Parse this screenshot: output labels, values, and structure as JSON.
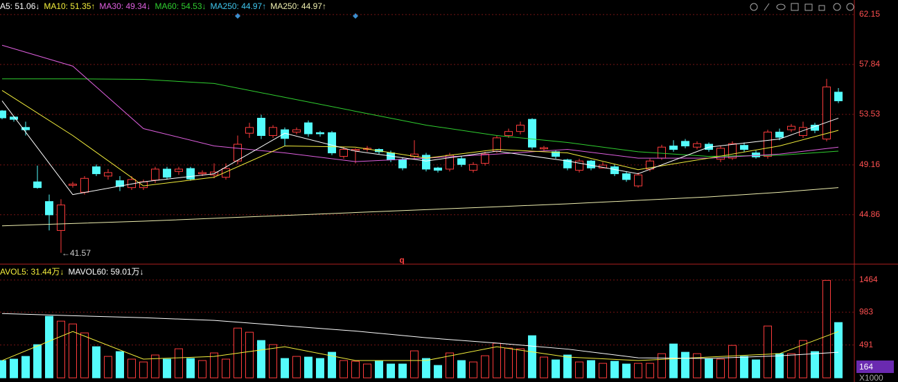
{
  "chart_data": [
    {
      "type": "candlestick",
      "legend": [
        {
          "text": "A5: 51.06↓",
          "color": "#ffffff"
        },
        {
          "text": "MA10: 51.35↑",
          "color": "#f5f03c"
        },
        {
          "text": "MA30: 49.34↓",
          "color": "#e060e0"
        },
        {
          "text": "MA60: 54.53↓",
          "color": "#30d030"
        },
        {
          "text": "MA250: 44.97↑",
          "color": "#40c8f0"
        },
        {
          "text": "MA250: 44.97↑",
          "color": "#f0f0b0"
        }
      ],
      "open": [
        53.83,
        53.3,
        52.4,
        47.7,
        46.0,
        43.5,
        47.4,
        46.8,
        49.0,
        48.2,
        47.8,
        47.2,
        47.2,
        47.85,
        48.8,
        48.6,
        48.85,
        48.4,
        48.3,
        48.1,
        49.5,
        51.9,
        53.2,
        51.7,
        52.2,
        52.0,
        52.8,
        51.95,
        51.95,
        49.9,
        50.4,
        50.5,
        50.5,
        50.2,
        49.6,
        49.9,
        50.0,
        48.9,
        48.8,
        49.7,
        48.7,
        49.3,
        50.35,
        51.7,
        52.05,
        53.1,
        50.55,
        50.3,
        49.6,
        48.7,
        49.5,
        48.9,
        49.0,
        48.4,
        47.35,
        48.8,
        49.75,
        50.8,
        51.2,
        50.7,
        50.95,
        49.65,
        49.75,
        50.85,
        50.2,
        49.9,
        52.0,
        52.2,
        51.7,
        52.6,
        51.4,
        55.45
      ],
      "high": [
        53.9,
        53.4,
        52.9,
        49.1,
        46.6,
        46.2,
        47.7,
        48.2,
        49.2,
        48.8,
        48.2,
        48.2,
        47.9,
        49.0,
        49.0,
        49.0,
        49.0,
        48.7,
        49.3,
        49.3,
        51.7,
        52.8,
        53.5,
        52.6,
        52.4,
        52.4,
        53.0,
        52.1,
        52.1,
        50.7,
        50.6,
        50.8,
        50.6,
        50.4,
        49.8,
        51.3,
        50.2,
        49.0,
        50.2,
        49.9,
        49.4,
        50.3,
        51.7,
        52.3,
        52.9,
        53.2,
        50.8,
        50.4,
        49.7,
        49.7,
        49.6,
        49.4,
        49.2,
        48.6,
        48.5,
        49.7,
        50.9,
        51.3,
        51.4,
        51.2,
        51.1,
        50.8,
        51.2,
        51.1,
        50.4,
        52.2,
        52.3,
        52.7,
        52.9,
        52.8,
        56.6,
        55.8
      ],
      "low": [
        53.1,
        52.9,
        51.7,
        47.1,
        43.5,
        41.57,
        47.2,
        46.6,
        48.2,
        47.9,
        46.9,
        47.0,
        47.0,
        47.6,
        47.9,
        48.3,
        47.8,
        48.2,
        48.0,
        47.9,
        49.2,
        51.5,
        51.4,
        51.5,
        50.8,
        51.8,
        51.6,
        51.6,
        50.0,
        49.7,
        49.3,
        50.3,
        50.1,
        49.4,
        48.7,
        49.7,
        48.6,
        48.5,
        48.6,
        49.0,
        48.5,
        49.1,
        50.2,
        51.5,
        51.8,
        50.5,
        50.4,
        49.7,
        48.7,
        48.5,
        48.7,
        48.9,
        48.2,
        47.7,
        47.2,
        48.6,
        49.6,
        50.3,
        50.6,
        50.5,
        50.3,
        49.4,
        49.6,
        50.3,
        49.7,
        49.7,
        51.3,
        52.0,
        51.5,
        51.9,
        51.2,
        54.5
      ],
      "close": [
        53.23,
        53.1,
        52.2,
        47.2,
        44.85,
        45.7,
        47.5,
        48.0,
        48.4,
        48.5,
        47.3,
        47.9,
        47.7,
        48.8,
        48.1,
        48.8,
        47.95,
        48.5,
        48.55,
        48.85,
        50.95,
        52.4,
        51.7,
        52.4,
        51.45,
        52.2,
        51.85,
        51.85,
        50.2,
        50.5,
        50.5,
        50.6,
        50.3,
        49.6,
        48.9,
        50.1,
        48.8,
        48.7,
        50.0,
        49.2,
        49.2,
        50.1,
        51.5,
        52.05,
        52.6,
        50.7,
        50.65,
        49.9,
        48.9,
        49.5,
        48.9,
        49.15,
        48.4,
        47.9,
        48.3,
        49.5,
        50.7,
        50.5,
        50.8,
        51.0,
        50.5,
        50.6,
        51.0,
        50.5,
        49.85,
        52.0,
        51.55,
        52.5,
        52.4,
        52.15,
        55.9,
        54.7
      ],
      "up_color": "#ff3c3c",
      "down_color": "#54fcfc",
      "ma_lines": [
        {
          "color": "#f0f0b0",
          "idx": [
            0,
            6,
            12,
            18,
            24,
            30,
            36,
            42,
            48,
            54,
            60,
            66,
            71
          ],
          "values": [
            43.9,
            44.1,
            44.3,
            44.55,
            44.8,
            45.05,
            45.3,
            45.55,
            45.8,
            46.1,
            46.4,
            46.8,
            47.2
          ]
        },
        {
          "color": "#30d030",
          "idx": [
            0,
            6,
            12,
            18,
            24,
            30,
            36,
            42,
            48,
            54,
            60,
            66,
            71
          ],
          "values": [
            56.6,
            56.6,
            56.55,
            56.2,
            55.0,
            53.8,
            52.6,
            51.7,
            51.1,
            50.3,
            49.9,
            50.0,
            50.35
          ]
        },
        {
          "color": "#e060e0",
          "idx": [
            0,
            6,
            12,
            18,
            24,
            30,
            36,
            42,
            48,
            54,
            60,
            66,
            71
          ],
          "values": [
            59.5,
            57.7,
            52.3,
            50.8,
            50.2,
            49.45,
            49.75,
            50.1,
            50.5,
            49.75,
            49.75,
            50.1,
            50.7
          ]
        },
        {
          "color": "#f5f03c",
          "idx": [
            0,
            6,
            12,
            18,
            24,
            30,
            36,
            42,
            48,
            54,
            60,
            66,
            71
          ],
          "values": [
            55.6,
            51.7,
            47.35,
            48.1,
            50.8,
            50.7,
            49.75,
            50.5,
            50.2,
            48.75,
            49.75,
            50.8,
            52.15
          ]
        },
        {
          "color": "#ffffff",
          "idx": [
            0,
            6,
            12,
            18,
            24,
            30,
            36,
            42,
            48,
            54,
            60,
            66,
            71
          ],
          "values": [
            54.7,
            46.6,
            47.7,
            48.4,
            51.9,
            50.35,
            49.5,
            50.35,
            49.5,
            48.4,
            50.7,
            51.4,
            53.2
          ]
        }
      ],
      "ylim": [
        40.65,
        63.41
      ],
      "yticks": [
        62.15,
        57.84,
        53.53,
        49.16,
        44.86
      ],
      "min_label": "←41.57",
      "marker_label": "q"
    },
    {
      "type": "bar",
      "legend": [
        {
          "text": "AVOL5: 31.44万↓",
          "color": "#f5f03c"
        },
        {
          "text": "MAVOL60: 59.01万↓",
          "color": "#ffffff"
        }
      ],
      "values": [
        259,
        280,
        321,
        497,
        921,
        849,
        807,
        673,
        466,
        321,
        393,
        280,
        238,
        342,
        280,
        435,
        290,
        259,
        373,
        280,
        745,
        683,
        559,
        497,
        290,
        321,
        311,
        290,
        383,
        259,
        248,
        207,
        248,
        207,
        207,
        404,
        290,
        186,
        373,
        259,
        238,
        331,
        518,
        445,
        435,
        631,
        311,
        269,
        342,
        238,
        259,
        217,
        248,
        207,
        217,
        217,
        362,
        507,
        383,
        362,
        280,
        280,
        486,
        321,
        269,
        776,
        362,
        362,
        559,
        393,
        1459,
        828
      ],
      "ma_lines": [
        {
          "color": "#f5f03c",
          "idx": [
            0,
            6,
            12,
            18,
            24,
            30,
            36,
            42,
            48,
            54,
            60,
            66,
            71
          ],
          "values": [
            259,
            693,
            280,
            321,
            466,
            259,
            259,
            466,
            311,
            259,
            311,
            362,
            693
          ]
        },
        {
          "color": "#ffffff",
          "idx": [
            0,
            6,
            12,
            18,
            24,
            30,
            36,
            42,
            48,
            54,
            60,
            66,
            71
          ],
          "values": [
            963,
            930,
            900,
            860,
            780,
            700,
            600,
            520,
            430,
            300,
            290,
            330,
            383
          ]
        }
      ],
      "ylim": [
        0,
        1681
      ],
      "yticks": [
        1464,
        983,
        491
      ],
      "current_label": "164",
      "unit_label": "X1000"
    }
  ]
}
